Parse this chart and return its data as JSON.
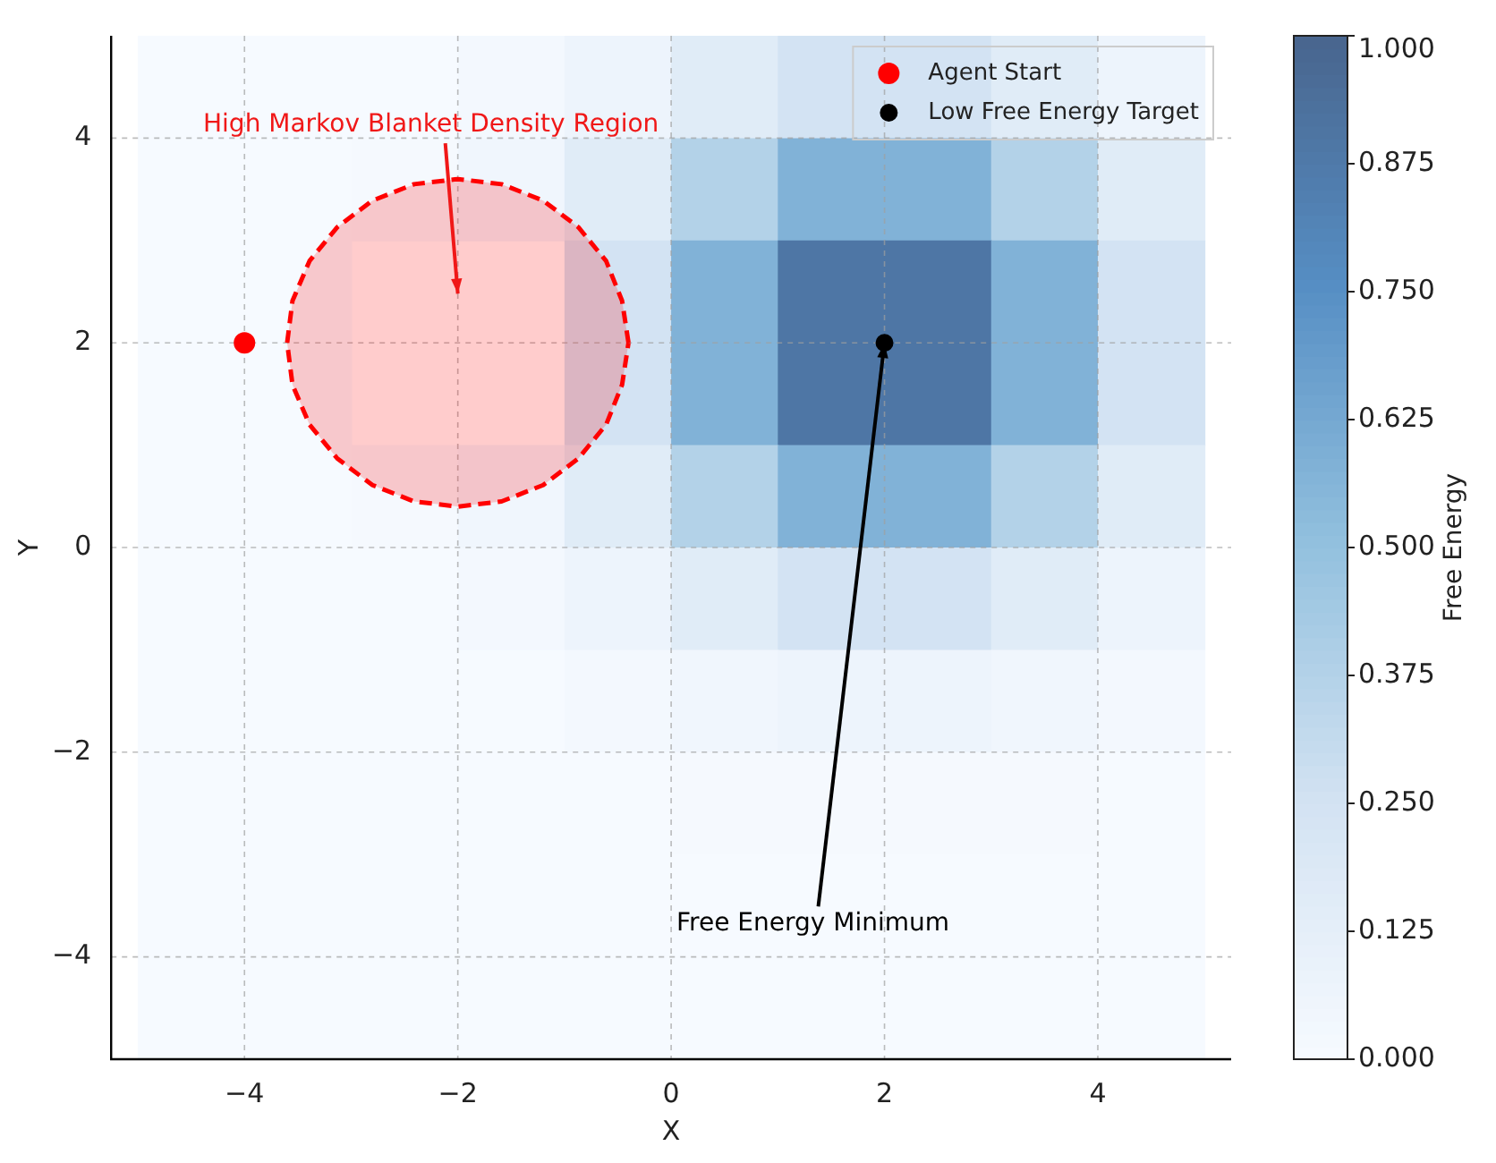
{
  "chart_data": {
    "type": "heatmap",
    "xlabel": "X",
    "ylabel": "Y",
    "clabel": "Free Energy",
    "xlim": [
      -5.25,
      5.25
    ],
    "ylim": [
      -5,
      5
    ],
    "xticks": [
      -4,
      -2,
      0,
      2,
      4
    ],
    "yticks": [
      -4,
      -2,
      0,
      2,
      4
    ],
    "grid": true,
    "legend": "top right",
    "x": [
      -4.5,
      -3.5,
      -2.5,
      -1.5,
      -0.5,
      0.5,
      1.5,
      2.5,
      3.5,
      4.5
    ],
    "cells": [
      [
        0,
        0,
        0,
        0.02,
        0.06,
        0.15,
        0.24,
        0.24,
        0.15,
        0.06
      ],
      [
        0,
        0,
        0.01,
        0.04,
        0.15,
        0.37,
        0.57,
        0.57,
        0.37,
        0.15
      ],
      [
        0,
        0,
        null,
        null,
        0.24,
        0.57,
        0.89,
        0.89,
        0.57,
        0.24
      ],
      [
        0,
        0,
        null,
        null,
        0.24,
        0.57,
        0.89,
        0.89,
        0.57,
        0.24
      ],
      [
        0,
        0,
        0.01,
        0.04,
        0.15,
        0.37,
        0.57,
        0.57,
        0.37,
        0.15
      ],
      [
        0,
        0,
        0,
        0.02,
        0.06,
        0.15,
        0.24,
        0.24,
        0.15,
        0.06
      ],
      [
        0,
        0,
        0,
        0,
        0.02,
        0.04,
        0.06,
        0.06,
        0.04,
        0.02
      ],
      [
        0,
        0,
        0,
        0,
        0,
        0.01,
        0.01,
        0.01,
        0.01,
        0
      ],
      [
        0,
        0,
        0,
        0,
        0,
        0,
        0,
        0,
        0,
        0
      ],
      [
        0,
        0,
        0,
        0,
        0,
        0,
        0,
        0,
        0,
        0
      ]
    ],
    "clim": [
      0,
      1
    ],
    "cticks": [
      {
        "value": 0,
        "label": "0.000"
      },
      {
        "value": 0.125,
        "label": "0.125"
      },
      {
        "value": 0.25,
        "label": "0.250"
      },
      {
        "value": 0.375,
        "label": "0.375"
      },
      {
        "value": 0.5,
        "label": "0.500"
      },
      {
        "value": 0.625,
        "label": "0.625"
      },
      {
        "value": 0.75,
        "label": "0.750"
      },
      {
        "value": 0.875,
        "label": "0.875"
      },
      {
        "value": 1,
        "label": "1.000"
      }
    ],
    "series": [
      {
        "type": "area",
        "color": "#ff0000",
        "line_style": "dashed",
        "x": [
          -0.4,
          -0.46,
          -0.61,
          -0.87,
          -1.2,
          -1.59,
          -2,
          -2.41,
          -2.8,
          -3.13,
          -3.39,
          -3.55,
          -3.6,
          -3.55,
          -3.39,
          -3.13,
          -2.8,
          -2.41,
          -2,
          -1.59,
          -1.2,
          -0.87,
          -0.61,
          -0.46,
          -0.4
        ],
        "values": [
          2,
          2.41,
          2.8,
          3.13,
          3.39,
          3.55,
          3.6,
          3.55,
          3.39,
          3.13,
          2.8,
          2.41,
          2,
          1.59,
          1.2,
          0.87,
          0.61,
          0.45,
          0.4,
          0.45,
          0.61,
          0.87,
          1.2,
          1.59,
          2
        ]
      },
      {
        "type": "scatter",
        "name": "Agent Start",
        "color": "#ff0000",
        "marker": "circle",
        "x": [
          -4
        ],
        "values": [
          2
        ]
      },
      {
        "type": "scatter",
        "name": "Low Free Energy Target",
        "color": "#000000",
        "marker": "circle",
        "x": [
          2
        ],
        "values": [
          2
        ]
      }
    ],
    "annotations": [
      "High Markov Blanket Density Region",
      {
        "text": "Free Energy Minimum",
        "x": 2,
        "y": 2
      }
    ]
  }
}
